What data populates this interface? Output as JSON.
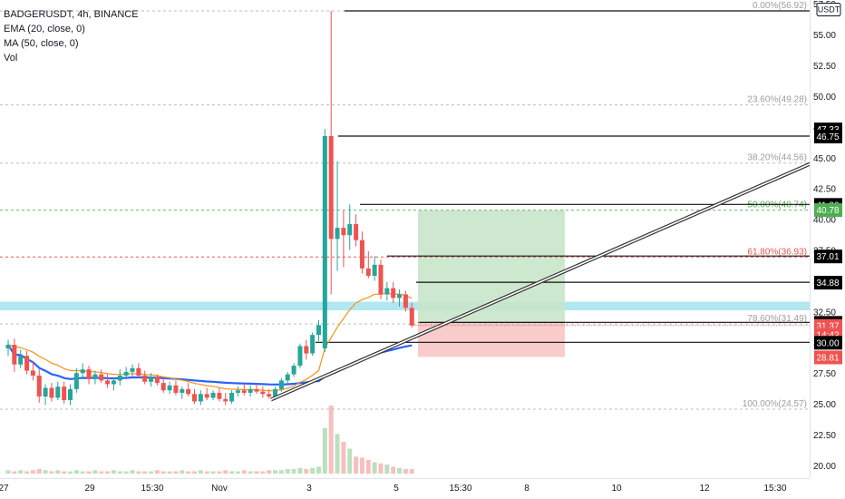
{
  "legend": {
    "symbol": "BADGERUSDT, 4h, BINANCE",
    "ema": "EMA (20, close, 0)",
    "ma": "MA (50, close, 0)",
    "vol": "Vol"
  },
  "colors": {
    "up": "#26a69a",
    "down": "#ef5350",
    "ema": "#f7931a",
    "ma": "#2962ff",
    "zone": "#a9e4ef",
    "profit": "#c8e6c9",
    "loss": "#f8c7c7",
    "trendline": "#333333"
  },
  "chart_data": {
    "type": "candlestick",
    "title": "BADGERUSDT, 4h, BINANCE",
    "quote_currency": "USDT",
    "indicators": [
      "EMA (20, close, 0)",
      "MA (50, close, 0)",
      "Vol"
    ],
    "x_ticks": [
      "27",
      "29",
      "15:30",
      "Nov",
      "3",
      "5",
      "15:30",
      "8",
      "10",
      "12",
      "15:30"
    ],
    "y_ticks": [
      "57.50",
      "55.00",
      "52.50",
      "50.00",
      "47.50",
      "45.00",
      "42.50",
      "40.00",
      "37.50",
      "35.00",
      "32.50",
      "30.00",
      "27.50",
      "25.00",
      "22.50",
      "20.00"
    ],
    "ylim": [
      20,
      57.7
    ],
    "fib_levels": [
      {
        "label": "0.00%(56.92)",
        "price": 56.92,
        "color": "#9e9e9e"
      },
      {
        "label": "23.60%(49.28)",
        "price": 49.28,
        "color": "#9e9e9e"
      },
      {
        "label": "38.20%(44.56)",
        "price": 44.56,
        "color": "#9e9e9e"
      },
      {
        "label": "50.00%(40.74)",
        "price": 40.74,
        "color": "#4caf50"
      },
      {
        "label": "61.80%(36.93)",
        "price": 36.93,
        "color": "#ef5350"
      },
      {
        "label": "78.60%(31.49)",
        "price": 31.49,
        "color": "#9e9e9e"
      },
      {
        "label": "100.00%(24.57)",
        "price": 24.57,
        "color": "#9e9e9e"
      }
    ],
    "horizontal_levels": [
      56.92,
      46.75,
      41.2,
      37.01,
      34.88,
      31.62,
      30.0
    ],
    "price_labels": [
      {
        "text": "USDT",
        "price": 57.1,
        "style": "box"
      },
      {
        "text": "47.33",
        "price": 47.33,
        "style": "black"
      },
      {
        "text": "46.75",
        "price": 46.75,
        "style": "black"
      },
      {
        "text": "41.20",
        "price": 41.2,
        "style": "black"
      },
      {
        "text": "40.78",
        "price": 40.78,
        "style": "green"
      },
      {
        "text": "37.01",
        "price": 37.01,
        "style": "black"
      },
      {
        "text": "34.88",
        "price": 34.88,
        "style": "black"
      },
      {
        "text": "31.62",
        "price": 31.62,
        "style": "black"
      },
      {
        "text": "31.37",
        "price": 31.37,
        "style": "red"
      },
      {
        "text": "14:42",
        "price": 30.65,
        "style": "red"
      },
      {
        "text": "30.00",
        "price": 30.0,
        "style": "black"
      },
      {
        "text": "28.81",
        "price": 28.81,
        "style": "red"
      }
    ],
    "support_zone": [
      32.6,
      33.3
    ],
    "position": {
      "entry": 31.62,
      "target": 40.74,
      "stop": 28.81
    },
    "trendline": {
      "from": [
        "Nov 2",
        25.35
      ],
      "to": [
        "Nov 14",
        44.8
      ]
    },
    "candles": [
      {
        "o": 29.5,
        "h": 30.2,
        "l": 28.9,
        "c": 29.8
      },
      {
        "o": 29.8,
        "h": 30.3,
        "l": 27.6,
        "c": 28.2
      },
      {
        "o": 28.2,
        "h": 29.4,
        "l": 27.9,
        "c": 28.9
      },
      {
        "o": 28.9,
        "h": 29.3,
        "l": 27.4,
        "c": 27.7
      },
      {
        "o": 27.7,
        "h": 28.4,
        "l": 26.9,
        "c": 27.3
      },
      {
        "o": 27.3,
        "h": 27.8,
        "l": 25.1,
        "c": 25.6
      },
      {
        "o": 25.6,
        "h": 26.6,
        "l": 24.9,
        "c": 26.3
      },
      {
        "o": 26.3,
        "h": 26.7,
        "l": 25.2,
        "c": 25.5
      },
      {
        "o": 25.5,
        "h": 26.8,
        "l": 25.3,
        "c": 26.4
      },
      {
        "o": 26.4,
        "h": 26.8,
        "l": 25.0,
        "c": 25.3
      },
      {
        "o": 25.3,
        "h": 26.6,
        "l": 24.9,
        "c": 26.2
      },
      {
        "o": 26.2,
        "h": 27.9,
        "l": 25.9,
        "c": 27.5
      },
      {
        "o": 27.5,
        "h": 28.3,
        "l": 27.0,
        "c": 27.8
      },
      {
        "o": 27.8,
        "h": 28.1,
        "l": 26.6,
        "c": 27.0
      },
      {
        "o": 27.0,
        "h": 27.7,
        "l": 26.6,
        "c": 27.4
      },
      {
        "o": 27.4,
        "h": 27.8,
        "l": 26.7,
        "c": 26.9
      },
      {
        "o": 26.9,
        "h": 27.4,
        "l": 26.3,
        "c": 26.6
      },
      {
        "o": 26.6,
        "h": 27.1,
        "l": 26.1,
        "c": 26.9
      },
      {
        "o": 26.9,
        "h": 27.8,
        "l": 26.5,
        "c": 27.3
      },
      {
        "o": 27.3,
        "h": 28.0,
        "l": 27.0,
        "c": 27.6
      },
      {
        "o": 27.6,
        "h": 28.2,
        "l": 27.2,
        "c": 27.9
      },
      {
        "o": 27.9,
        "h": 28.3,
        "l": 27.1,
        "c": 27.3
      },
      {
        "o": 27.3,
        "h": 27.7,
        "l": 26.6,
        "c": 26.8
      },
      {
        "o": 26.8,
        "h": 27.5,
        "l": 26.4,
        "c": 27.2
      },
      {
        "o": 27.2,
        "h": 27.4,
        "l": 26.5,
        "c": 26.7
      },
      {
        "o": 26.7,
        "h": 27.2,
        "l": 25.9,
        "c": 26.1
      },
      {
        "o": 26.1,
        "h": 26.8,
        "l": 25.8,
        "c": 26.5
      },
      {
        "o": 26.5,
        "h": 26.9,
        "l": 25.7,
        "c": 25.9
      },
      {
        "o": 25.9,
        "h": 26.4,
        "l": 25.4,
        "c": 26.2
      },
      {
        "o": 26.2,
        "h": 26.7,
        "l": 25.6,
        "c": 25.8
      },
      {
        "o": 25.8,
        "h": 26.2,
        "l": 25.0,
        "c": 25.2
      },
      {
        "o": 25.2,
        "h": 26.1,
        "l": 24.9,
        "c": 25.8
      },
      {
        "o": 25.8,
        "h": 26.3,
        "l": 25.3,
        "c": 25.5
      },
      {
        "o": 25.5,
        "h": 26.1,
        "l": 25.3,
        "c": 25.9
      },
      {
        "o": 25.9,
        "h": 26.3,
        "l": 25.2,
        "c": 25.4
      },
      {
        "o": 25.4,
        "h": 25.9,
        "l": 24.9,
        "c": 25.2
      },
      {
        "o": 25.2,
        "h": 26.1,
        "l": 25.0,
        "c": 25.9
      },
      {
        "o": 25.9,
        "h": 26.4,
        "l": 25.6,
        "c": 26.1
      },
      {
        "o": 26.1,
        "h": 26.6,
        "l": 25.7,
        "c": 25.9
      },
      {
        "o": 25.9,
        "h": 26.5,
        "l": 25.6,
        "c": 26.2
      },
      {
        "o": 26.2,
        "h": 26.6,
        "l": 25.8,
        "c": 26.0
      },
      {
        "o": 26.0,
        "h": 26.4,
        "l": 25.5,
        "c": 25.8
      },
      {
        "o": 25.8,
        "h": 26.2,
        "l": 25.4,
        "c": 25.6
      },
      {
        "o": 25.6,
        "h": 26.4,
        "l": 25.3,
        "c": 26.2
      },
      {
        "o": 26.2,
        "h": 27.1,
        "l": 26.0,
        "c": 26.9
      },
      {
        "o": 26.9,
        "h": 27.6,
        "l": 26.6,
        "c": 27.4
      },
      {
        "o": 27.4,
        "h": 28.3,
        "l": 27.2,
        "c": 28.1
      },
      {
        "o": 28.1,
        "h": 29.9,
        "l": 27.9,
        "c": 29.7
      },
      {
        "o": 29.7,
        "h": 30.2,
        "l": 28.6,
        "c": 29.1
      },
      {
        "o": 29.1,
        "h": 30.8,
        "l": 28.9,
        "c": 30.6
      },
      {
        "o": 30.6,
        "h": 31.8,
        "l": 30.1,
        "c": 31.4
      },
      {
        "o": 29.5,
        "h": 47.33,
        "l": 29.2,
        "c": 46.75
      },
      {
        "o": 46.75,
        "h": 56.92,
        "l": 33.9,
        "c": 38.4
      },
      {
        "o": 38.4,
        "h": 44.7,
        "l": 35.8,
        "c": 39.3
      },
      {
        "o": 39.3,
        "h": 40.7,
        "l": 36.1,
        "c": 38.7
      },
      {
        "o": 38.7,
        "h": 41.2,
        "l": 37.5,
        "c": 39.6
      },
      {
        "o": 39.6,
        "h": 40.4,
        "l": 37.8,
        "c": 38.3
      },
      {
        "o": 38.3,
        "h": 39.0,
        "l": 35.6,
        "c": 36.0
      },
      {
        "o": 36.0,
        "h": 37.4,
        "l": 35.2,
        "c": 35.4
      },
      {
        "o": 35.4,
        "h": 37.0,
        "l": 35.0,
        "c": 36.3
      },
      {
        "o": 36.3,
        "h": 36.7,
        "l": 33.5,
        "c": 33.9
      },
      {
        "o": 33.9,
        "h": 34.9,
        "l": 33.4,
        "c": 34.4
      },
      {
        "o": 34.4,
        "h": 34.9,
        "l": 33.2,
        "c": 33.6
      },
      {
        "o": 33.6,
        "h": 34.3,
        "l": 32.9,
        "c": 33.9
      },
      {
        "o": 33.9,
        "h": 34.2,
        "l": 32.5,
        "c": 32.8
      },
      {
        "o": 32.8,
        "h": 33.2,
        "l": 31.2,
        "c": 31.37
      }
    ],
    "volume": [
      3,
      2,
      3,
      2,
      3,
      4,
      3,
      2,
      3,
      2,
      2,
      3,
      2,
      2,
      3,
      2,
      2,
      3,
      2,
      2,
      3,
      2,
      2,
      2,
      3,
      2,
      2,
      2,
      3,
      2,
      2,
      3,
      2,
      2,
      2,
      3,
      2,
      2,
      3,
      2,
      2,
      2,
      3,
      3,
      3,
      4,
      4,
      5,
      4,
      5,
      6,
      40,
      60,
      35,
      28,
      22,
      15,
      14,
      12,
      10,
      9,
      8,
      6,
      5,
      4,
      4
    ]
  }
}
